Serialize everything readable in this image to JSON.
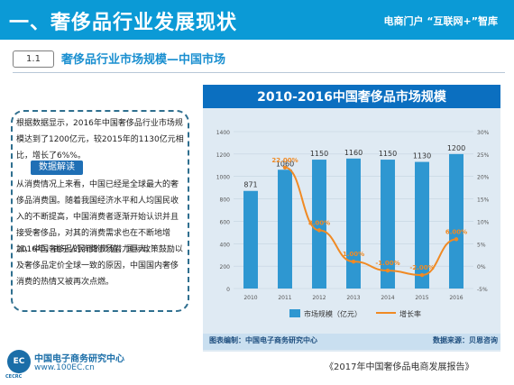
{
  "header": {
    "title": "一、奢侈品行业发展现状",
    "brand": "电商门户 “互联网+”智库"
  },
  "section": {
    "number": "1.1",
    "title": "奢侈品行业市场规模—中国市场"
  },
  "text": {
    "paragraph1": "根据数据显示，2016年中国奢侈品行业市场规模达到了1200亿元，较2015年的1130亿元相比，增长了6%%。",
    "badge": "数据解读",
    "paragraph2": "从消费情况上来看，中国已经是全球最大的奢侈品消费国。随着我国经济水平和人均国民收入的不断提高，中国消费者逐渐开始认识并且接受奢侈品，对其的消费需求也在不断地增加，中国奢侈品的消费市场潜力巨大。",
    "paragraph3": "2016年，由于人民币的贬值、国际政策鼓励以及奢侈品定价全球一致的原因，中国国内奢侈消费的热情又被再次点燃。"
  },
  "footer": {
    "logo_text": "EC",
    "logo_sub": "CECRC",
    "org_name": "中国电子商务研究中心",
    "org_url": "www.100EC.cn",
    "report": "《2017年中国奢侈品电商发展报告》"
  },
  "colors": {
    "header": "#0b9ad6",
    "bar": "#2e97d1",
    "line": "#f08a24",
    "chart_bg": "#dfeaf3"
  },
  "chart_data": {
    "type": "bar",
    "title": "2010-2016中国奢侈品市场规模",
    "categories": [
      "2010",
      "2011",
      "2012",
      "2013",
      "2014",
      "2015",
      "2016"
    ],
    "series": [
      {
        "name": "市场规模（亿元）",
        "type": "bar",
        "axis": "left",
        "values": [
          871,
          1060,
          1150,
          1160,
          1150,
          1130,
          1200
        ],
        "labels": [
          "871",
          "1060",
          "1150",
          "1160",
          "1150",
          "1130",
          "1200"
        ]
      },
      {
        "name": "增长率",
        "type": "line",
        "axis": "right",
        "values": [
          null,
          22.0,
          8.0,
          1.0,
          -1.0,
          -2.0,
          6.0
        ],
        "labels": [
          "",
          "22.00%",
          "8.00%",
          "1.00%",
          "-1.00%",
          "-2.00%",
          "6.00%"
        ]
      }
    ],
    "ylim_left": [
      0,
      1400
    ],
    "yticks_left": [
      "0",
      "200",
      "400",
      "600",
      "800",
      "1000",
      "1200",
      "1400"
    ],
    "ylim_right": [
      -5,
      30
    ],
    "yticks_right": [
      "-5%",
      "0%",
      "5%",
      "10%",
      "15%",
      "20%",
      "25%",
      "30%"
    ],
    "legend_position": "bottom",
    "footer_left": "图表编制：中国电子商务研究中心",
    "footer_right": "数据来源：贝恩咨询"
  }
}
